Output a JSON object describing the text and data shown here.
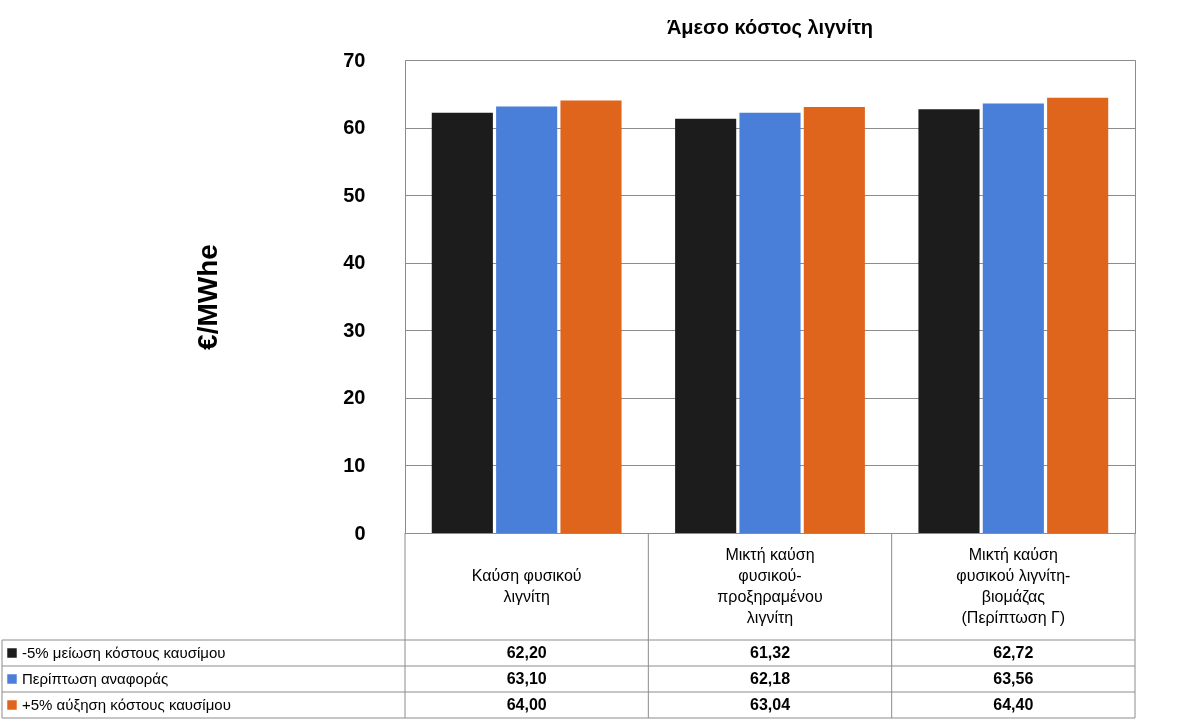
{
  "chart_data": {
    "type": "bar",
    "title": "Άμεσο κόστος λιγνίτη",
    "ylabel": "€/MWhe",
    "categories": [
      "Καύση φυσικού λιγνίτη",
      "Μικτή καύση φυσικού-προξηραμένου λιγνίτη",
      "Μικτή καύση φυσικού λιγνίτη-βιομάζας (Περίπτωση Γ)"
    ],
    "series": [
      {
        "name": "-5% μείωση κόστους καυσίμου",
        "color": "#1c1c1c",
        "values": [
          62.2,
          61.32,
          62.72
        ],
        "value_labels": [
          "62,20",
          "61,32",
          "62,72"
        ]
      },
      {
        "name": "Περίπτωση αναφοράς",
        "color": "#4a7fd9",
        "values": [
          63.1,
          62.18,
          63.56
        ],
        "value_labels": [
          "63,10",
          "62,18",
          "63,56"
        ]
      },
      {
        "name": "+5% αύξηση κόστους καυσίμου",
        "color": "#e0651c",
        "values": [
          64.0,
          63.04,
          64.4
        ],
        "value_labels": [
          "64,00",
          "63,04",
          "64,40"
        ]
      }
    ],
    "ylim": [
      0,
      70
    ],
    "yticks": [
      0,
      10,
      20,
      30,
      40,
      50,
      60,
      70
    ],
    "grid": "y",
    "legend": "bottom left"
  }
}
